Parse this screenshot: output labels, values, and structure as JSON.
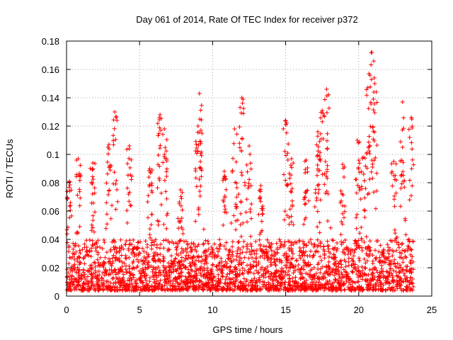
{
  "chart_data": {
    "type": "scatter",
    "title": "Day 061 of 2014, Rate Of TEC Index for receiver p372",
    "xlabel": "GPS time / hours",
    "ylabel": "ROTI / TECUs",
    "xlim": [
      0,
      25
    ],
    "ylim": [
      0,
      0.18
    ],
    "xticks": [
      0,
      5,
      10,
      15,
      20,
      25
    ],
    "yticks": [
      0,
      0.02,
      0.04,
      0.06,
      0.08,
      0.1,
      0.12,
      0.14,
      0.16,
      0.18
    ],
    "xtick_labels": [
      "0",
      "5",
      "10",
      "15",
      "20",
      "25"
    ],
    "ytick_labels": [
      "0",
      "0.02",
      "0.04",
      "0.06",
      "0.08",
      "0.1",
      "0.12",
      "0.14",
      "0.16",
      "0.18"
    ],
    "grid": true,
    "marker": "+",
    "color": "#ff0000",
    "x_extent_hours": [
      0,
      23.75
    ],
    "background_level_range": [
      0.004,
      0.04
    ],
    "notable_peaks": [
      {
        "x": 0.2,
        "y": 0.081
      },
      {
        "x": 0.8,
        "y": 0.097
      },
      {
        "x": 1.8,
        "y": 0.094
      },
      {
        "x": 2.9,
        "y": 0.107
      },
      {
        "x": 3.3,
        "y": 0.13
      },
      {
        "x": 4.3,
        "y": 0.106
      },
      {
        "x": 5.7,
        "y": 0.09
      },
      {
        "x": 6.4,
        "y": 0.128
      },
      {
        "x": 6.7,
        "y": 0.118
      },
      {
        "x": 7.8,
        "y": 0.075
      },
      {
        "x": 9.0,
        "y": 0.12
      },
      {
        "x": 9.1,
        "y": 0.143
      },
      {
        "x": 10.8,
        "y": 0.088
      },
      {
        "x": 11.5,
        "y": 0.118
      },
      {
        "x": 12.0,
        "y": 0.14
      },
      {
        "x": 12.5,
        "y": 0.106
      },
      {
        "x": 13.3,
        "y": 0.078
      },
      {
        "x": 15.0,
        "y": 0.124
      },
      {
        "x": 15.4,
        "y": 0.097
      },
      {
        "x": 16.4,
        "y": 0.096
      },
      {
        "x": 17.2,
        "y": 0.116
      },
      {
        "x": 17.5,
        "y": 0.131
      },
      {
        "x": 17.8,
        "y": 0.146
      },
      {
        "x": 18.9,
        "y": 0.093
      },
      {
        "x": 19.9,
        "y": 0.11
      },
      {
        "x": 20.3,
        "y": 0.098
      },
      {
        "x": 20.7,
        "y": 0.157
      },
      {
        "x": 20.9,
        "y": 0.172
      },
      {
        "x": 21.1,
        "y": 0.15
      },
      {
        "x": 22.4,
        "y": 0.095
      },
      {
        "x": 23.0,
        "y": 0.137
      },
      {
        "x": 23.6,
        "y": 0.126
      }
    ]
  }
}
